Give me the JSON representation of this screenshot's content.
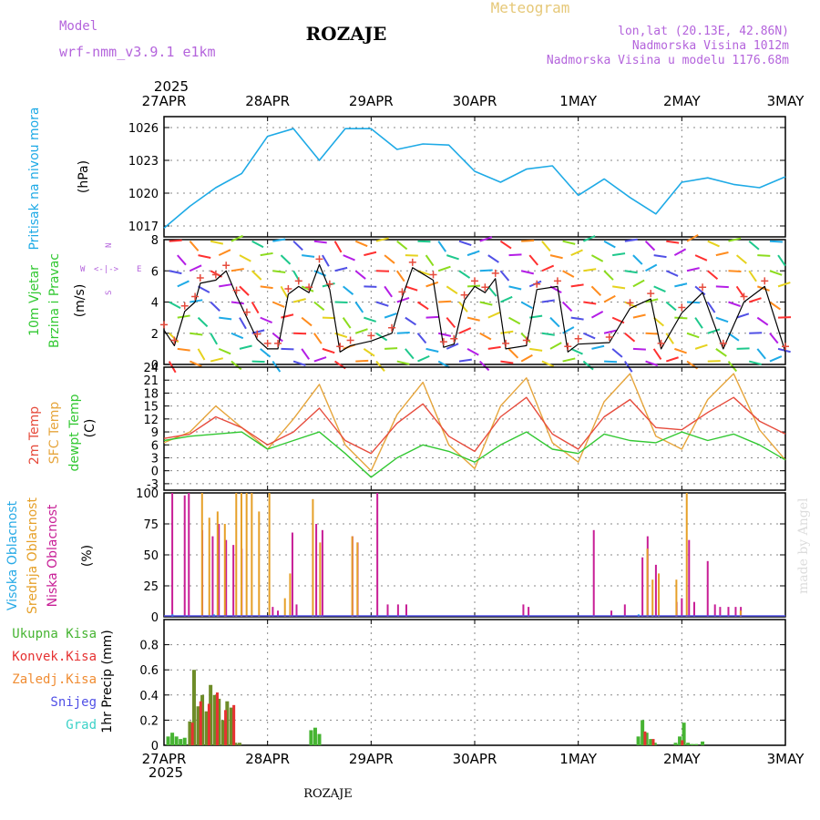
{
  "header": {
    "model_label": "Model",
    "model_name": "wrf-nmm_v3.9.1 e1km",
    "station": "ROZAJE",
    "meteogram": "Meteogram",
    "lonlat": "lon,lat (20.13E, 42.86N)",
    "altitude": "Nadmorska Visina 1012m",
    "altitude_model": "Nadmorska Visina u modelu 1176.68m",
    "footer_station": "ROZAJE",
    "credit": "made by Angel",
    "year_top": "2025",
    "year_bottom": "2025"
  },
  "colors": {
    "pressure": "#1eaae6",
    "temp2m": "#e64b3c",
    "sfc": "#e6a53c",
    "dewpt": "#32c832",
    "high_cloud": "#28aae6",
    "mid_cloud": "#e6a028",
    "low_cloud": "#c81e96",
    "precip_total": "#46b432",
    "precip_conv": "#e63232",
    "precip_frozen": "#f08c32",
    "snow": "#5050e6",
    "grad": "#3cd2c8",
    "precip_bar_dark": "#6e8c28"
  },
  "chart_data": [
    {
      "type": "line",
      "panel": "pressure",
      "ylabel": [
        "Pritisak na nivou mora",
        "(hPa)"
      ],
      "ylim": [
        1016,
        1027
      ],
      "yticks": [
        1017,
        1020,
        1023,
        1026
      ],
      "x_labels": [
        "27APR",
        "28APR",
        "29APR",
        "30APR",
        "1MAY",
        "2MAY",
        "3MAY"
      ],
      "series": [
        {
          "x": [
            0,
            0.25,
            0.5,
            0.75,
            1,
            1.25,
            1.5,
            1.75,
            2,
            2.25,
            2.5,
            2.75,
            3,
            3.25,
            3.5,
            3.75,
            4,
            4.25,
            4.5,
            4.75,
            5,
            5.25,
            5.5,
            5.75,
            6
          ],
          "values": [
            1016.8,
            1018.8,
            1020.5,
            1021.8,
            1025.2,
            1025.9,
            1023.0,
            1025.9,
            1025.9,
            1024.0,
            1024.5,
            1024.4,
            1022.0,
            1021.0,
            1022.2,
            1022.5,
            1019.8,
            1021.3,
            1019.6,
            1018.1,
            1021.0,
            1021.4,
            1020.8,
            1020.5,
            1021.5
          ]
        }
      ]
    },
    {
      "type": "line",
      "panel": "wind",
      "ylabel": [
        "10m Vjetar",
        "Brzina i Pravac",
        "(m/s)"
      ],
      "ylim": [
        0,
        8
      ],
      "yticks": [
        0,
        2,
        4,
        6,
        8
      ],
      "compass": [
        "N",
        "W",
        "E",
        "S"
      ],
      "series": [
        {
          "name": "wind speed",
          "x": [
            0,
            0.1,
            0.2,
            0.3,
            0.35,
            0.5,
            0.6,
            0.7,
            0.8,
            0.9,
            1.0,
            1.1,
            1.2,
            1.3,
            1.4,
            1.5,
            1.6,
            1.7,
            1.8,
            2.0,
            2.2,
            2.3,
            2.4,
            2.6,
            2.7,
            2.8,
            2.9,
            3.0,
            3.1,
            3.2,
            3.3,
            3.5,
            3.6,
            3.8,
            3.9,
            4.0,
            4.3,
            4.5,
            4.7,
            4.8,
            5.0,
            5.2,
            5.4,
            5.6,
            5.8,
            6.0
          ],
          "values": [
            2.2,
            1.2,
            3.4,
            4.0,
            5.2,
            5.4,
            6.0,
            4.4,
            3.0,
            1.6,
            1.0,
            1.0,
            4.5,
            5.0,
            4.6,
            6.4,
            4.8,
            0.8,
            1.2,
            1.5,
            2.0,
            4.3,
            6.2,
            5.4,
            1.1,
            1.3,
            4.1,
            5.0,
            4.6,
            5.5,
            1.0,
            1.2,
            4.8,
            5.0,
            0.8,
            1.3,
            1.4,
            3.6,
            4.2,
            1.0,
            3.3,
            4.6,
            1.0,
            4.0,
            5.0,
            0.8
          ]
        }
      ]
    },
    {
      "type": "line",
      "panel": "temperature",
      "ylabel": [
        "2m Temp",
        "SFC Temp",
        "dewpt Temp",
        "(C)"
      ],
      "ylim": [
        -4.5,
        24
      ],
      "yticks": [
        -3,
        0,
        3,
        6,
        9,
        12,
        15,
        18,
        21,
        24
      ],
      "series": [
        {
          "name": "2m Temp",
          "x": [
            0,
            0.25,
            0.5,
            0.75,
            1,
            1.25,
            1.5,
            1.75,
            2,
            2.25,
            2.5,
            2.75,
            3,
            3.25,
            3.5,
            3.75,
            4,
            4.25,
            4.5,
            4.75,
            5,
            5.25,
            5.5,
            5.75,
            6
          ],
          "values": [
            7.5,
            8.5,
            12.5,
            10.0,
            6.0,
            9.0,
            14.5,
            7.0,
            4.0,
            11.0,
            15.5,
            8.0,
            4.5,
            12.5,
            17.0,
            8.5,
            5.0,
            12.5,
            16.5,
            10.0,
            9.5,
            13.5,
            17.0,
            11.5,
            8.5
          ]
        },
        {
          "name": "SFC Temp",
          "x": [
            0,
            0.25,
            0.5,
            0.75,
            1,
            1.25,
            1.5,
            1.75,
            2,
            2.25,
            2.5,
            2.75,
            3,
            3.25,
            3.5,
            3.75,
            4,
            4.25,
            4.5,
            4.75,
            5,
            5.25,
            5.5,
            5.75,
            6
          ],
          "values": [
            6.5,
            9.0,
            15.0,
            10.0,
            5.0,
            12.0,
            20.0,
            6.0,
            0.0,
            13.0,
            20.5,
            6.0,
            0.5,
            15.0,
            21.5,
            6.5,
            2.0,
            16.0,
            22.5,
            8.0,
            5.0,
            16.5,
            22.5,
            9.5,
            2.5
          ]
        },
        {
          "name": "dewpt Temp",
          "x": [
            0,
            0.25,
            0.5,
            0.75,
            1,
            1.25,
            1.5,
            1.75,
            2,
            2.25,
            2.5,
            2.75,
            3,
            3.25,
            3.5,
            3.75,
            4,
            4.25,
            4.5,
            4.75,
            5,
            5.25,
            5.5,
            5.75,
            6
          ],
          "values": [
            7.0,
            8.0,
            8.5,
            9.0,
            5.0,
            7.0,
            9.0,
            4.0,
            -1.5,
            3.0,
            6.0,
            4.5,
            2.0,
            6.0,
            9.0,
            5.0,
            4.0,
            8.5,
            7.0,
            6.5,
            9.0,
            7.0,
            8.5,
            6.0,
            2.5
          ]
        }
      ]
    },
    {
      "type": "bar",
      "panel": "clouds",
      "ylabel": [
        "Visoka Oblacnost",
        "Srednja Oblacnost",
        "Niska Oblacnost",
        "(%)"
      ],
      "ylim": [
        0,
        100
      ],
      "yticks": [
        0,
        25,
        50,
        75,
        100
      ],
      "series": [
        {
          "name": "Niska Oblacnost",
          "x": [
            0.08,
            0.2,
            0.24,
            0.37,
            0.47,
            0.53,
            0.6,
            0.67,
            0.75,
            1.05,
            1.1,
            1.24,
            1.28,
            1.47,
            1.53,
            1.82,
            1.87,
            2.06,
            2.16,
            2.26,
            2.34,
            3.47,
            3.52,
            4.15,
            4.32,
            4.45,
            4.62,
            4.67,
            4.75,
            4.95,
            5.0,
            5.07,
            5.12,
            5.25,
            5.32,
            5.37,
            5.45,
            5.52,
            5.57
          ],
          "values": [
            100,
            98,
            100,
            70,
            65,
            75,
            62,
            58,
            55,
            8,
            5,
            68,
            10,
            75,
            70,
            65,
            60,
            100,
            10,
            10,
            10,
            10,
            8,
            70,
            5,
            10,
            48,
            65,
            42,
            12,
            15,
            62,
            12,
            45,
            10,
            8,
            8,
            8,
            8
          ]
        },
        {
          "name": "Srednja Oblacnost",
          "x": [
            0.35,
            0.42,
            0.5,
            0.57,
            0.68,
            0.73,
            0.78,
            0.83,
            0.9,
            1.0,
            1.15,
            1.2,
            1.42,
            1.49,
            1.8,
            1.85,
            4.65,
            4.7,
            4.76,
            4.93,
            5.03,
            5.55
          ],
          "values": [
            100,
            80,
            85,
            75,
            100,
            100,
            100,
            100,
            85,
            100,
            15,
            35,
            95,
            60,
            65,
            60,
            55,
            30,
            35,
            30,
            100,
            5
          ]
        },
        {
          "name": "Visoka Oblacnost",
          "x": [
            0.1,
            0.5,
            4.6
          ],
          "values": [
            2,
            2,
            2
          ]
        }
      ]
    },
    {
      "type": "bar",
      "panel": "precip",
      "ylabel": [
        "Ukupna Kisa",
        "Konvek.Kisa",
        "Zaledj.Kisa",
        "Snijeg",
        "Grad",
        "1hr Precip (mm)"
      ],
      "ylim": [
        0,
        1.0
      ],
      "yticks": [
        0,
        0.2,
        0.4,
        0.6,
        0.8
      ],
      "x_labels_bottom": [
        "27APR",
        "28APR",
        "29APR",
        "30APR",
        "1MAY",
        "2MAY",
        "3MAY"
      ],
      "series": [
        {
          "name": "Ukupna Kisa",
          "x": [
            0.04,
            0.08,
            0.12,
            0.16,
            0.2,
            0.25,
            0.29,
            0.33,
            0.37,
            0.41,
            0.45,
            0.49,
            0.53,
            0.57,
            0.61,
            0.65,
            0.69,
            0.73,
            0.77,
            0.81,
            0.85,
            0.89,
            0.93,
            1.42,
            1.46,
            1.5,
            4.58,
            4.62,
            4.66,
            4.7,
            4.74,
            4.94,
            4.98,
            5.02,
            5.06,
            5.1,
            5.14,
            5.2,
            5.3
          ],
          "values": [
            0.07,
            0.1,
            0.07,
            0.05,
            0.06,
            0.19,
            0.6,
            0.31,
            0.4,
            0.27,
            0.48,
            0.4,
            0.37,
            0.2,
            0.35,
            0.3,
            0.02,
            0.02,
            0.0,
            0.0,
            0.0,
            0.0,
            0.0,
            0.12,
            0.14,
            0.09,
            0.07,
            0.2,
            0.1,
            0.05,
            0.02,
            0.02,
            0.07,
            0.18,
            0.02,
            0.01,
            0.01,
            0.03,
            0.0
          ]
        },
        {
          "name": "Konvek.Kisa",
          "x": [
            0.27,
            0.35,
            0.43,
            0.51,
            0.59,
            0.67,
            4.64,
            4.72,
            5.0
          ],
          "values": [
            0.18,
            0.35,
            0.33,
            0.42,
            0.28,
            0.32,
            0.11,
            0.05,
            0.04
          ]
        }
      ]
    }
  ]
}
